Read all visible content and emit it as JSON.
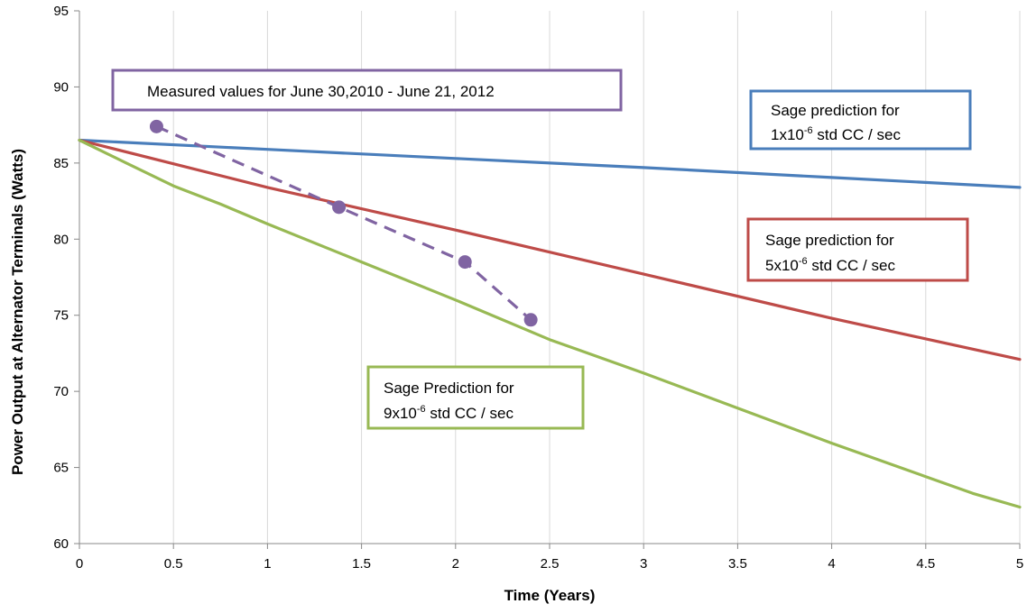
{
  "chart_data": {
    "type": "line",
    "xlabel": "Time (Years)",
    "ylabel": "Power Output at Alternator Terminals (Watts)",
    "xlim": [
      0,
      5
    ],
    "ylim": [
      60,
      95
    ],
    "x_ticks": [
      "0",
      "0.5",
      "1",
      "1.5",
      "2",
      "2.5",
      "3",
      "3.5",
      "4",
      "4.5",
      "5"
    ],
    "y_ticks": [
      "60",
      "65",
      "70",
      "75",
      "80",
      "85",
      "90",
      "95"
    ],
    "grid": "vertical",
    "series": [
      {
        "key": "blue",
        "color": "#4a7ebb",
        "style": "solid",
        "x": [
          0,
          1,
          2,
          3,
          4,
          5
        ],
        "y": [
          86.5,
          85.9,
          85.3,
          84.7,
          84.05,
          83.4
        ]
      },
      {
        "key": "red",
        "color": "#be4b48",
        "style": "solid",
        "x": [
          0,
          1,
          2,
          3,
          4,
          5
        ],
        "y": [
          86.5,
          83.4,
          80.6,
          77.7,
          74.8,
          72.1
        ]
      },
      {
        "key": "green",
        "color": "#98b954",
        "style": "solid",
        "x": [
          0,
          0.25,
          0.5,
          0.75,
          1,
          1.5,
          2,
          2.5,
          3,
          3.5,
          4,
          4.5,
          4.75,
          5
        ],
        "y": [
          86.5,
          85.0,
          83.5,
          82.3,
          81.0,
          78.5,
          76.0,
          73.4,
          71.2,
          68.9,
          66.6,
          64.4,
          63.3,
          62.4
        ]
      },
      {
        "key": "measured",
        "color": "#8064a2",
        "style": "dashed",
        "markers": true,
        "x": [
          0.41,
          1.38,
          2.05,
          2.4
        ],
        "y": [
          87.4,
          82.1,
          78.5,
          74.7
        ]
      }
    ],
    "annotations": [
      {
        "key": "measured",
        "border": "#8064a2",
        "text": "Measured values for June 30,2010  - June 21, 2012"
      },
      {
        "key": "blue",
        "border": "#4a7ebb",
        "line1": "Sage prediction for",
        "line2_pre": " 1x10",
        "line2_sup": "-6",
        "line2_post": " std CC / sec"
      },
      {
        "key": "red",
        "border": "#be4b48",
        "line1": "Sage prediction for",
        "line2_pre": "5x10",
        "line2_sup": "-6",
        "line2_post": " std CC / sec"
      },
      {
        "key": "green",
        "border": "#98b954",
        "line1": "Sage Prediction for",
        "line2_pre": "9x10",
        "line2_sup": "-6",
        "line2_post": " std CC / sec"
      }
    ]
  }
}
